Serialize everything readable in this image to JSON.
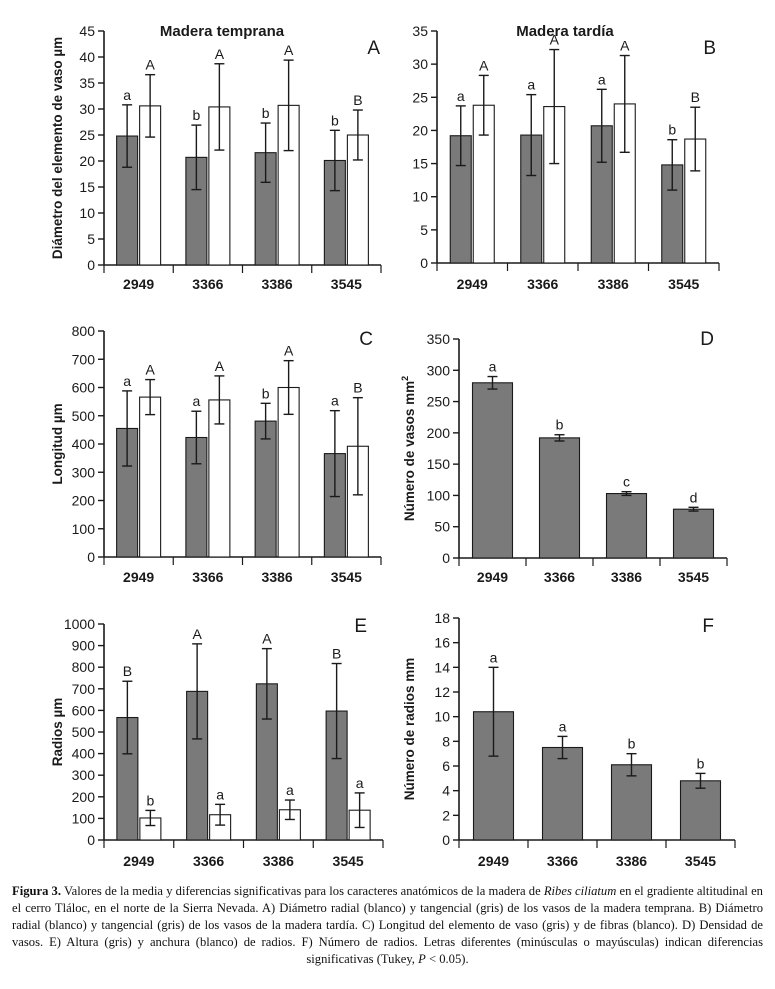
{
  "colors": {
    "gray": "#7a7a7a",
    "white": "#ffffff",
    "stroke": "#1a1a1a"
  },
  "chart_data": [
    {
      "panel": "A",
      "type": "bar",
      "title": "Madera temprana",
      "ylabel": "Diámetro del elemento de vaso µm",
      "ylim": [
        0,
        45
      ],
      "yticks": [
        "0",
        "5",
        "10",
        "15",
        "20",
        "25",
        "30",
        "35",
        "40",
        "45"
      ],
      "categories": [
        "2949",
        "3366",
        "3386",
        "3545"
      ],
      "series": [
        {
          "name": "tangencial",
          "color": "gray",
          "values": [
            24.8,
            20.7,
            21.6,
            20.1
          ],
          "err": [
            6,
            6.2,
            5.7,
            5.8
          ],
          "letters": [
            "a",
            "b",
            "b",
            "b"
          ]
        },
        {
          "name": "radial",
          "color": "white",
          "values": [
            30.6,
            30.4,
            30.7,
            25
          ],
          "err": [
            6,
            8.3,
            8.7,
            4.8
          ],
          "letters": [
            "A",
            "A",
            "A",
            "B"
          ]
        }
      ]
    },
    {
      "panel": "B",
      "type": "bar",
      "title": "Madera tardía",
      "ylabel": "",
      "ylim": [
        0,
        35
      ],
      "yticks": [
        "0",
        "5",
        "10",
        "15",
        "20",
        "25",
        "30",
        "35"
      ],
      "categories": [
        "2949",
        "3366",
        "3386",
        "3545"
      ],
      "series": [
        {
          "name": "tangencial",
          "color": "gray",
          "values": [
            19.2,
            19.3,
            20.7,
            14.8
          ],
          "err": [
            4.5,
            6.1,
            5.5,
            3.8
          ],
          "letters": [
            "a",
            "a",
            "a",
            "b"
          ]
        },
        {
          "name": "radial",
          "color": "white",
          "values": [
            23.8,
            23.6,
            24,
            18.7
          ],
          "err": [
            4.5,
            8.6,
            7.3,
            4.8
          ],
          "letters": [
            "A",
            "A",
            "A",
            "B"
          ]
        }
      ]
    },
    {
      "panel": "C",
      "type": "bar",
      "title": "",
      "ylabel": "Longitud µm",
      "ylim": [
        0,
        800
      ],
      "yticks": [
        "0",
        "100",
        "200",
        "300",
        "400",
        "500",
        "600",
        "700",
        "800"
      ],
      "categories": [
        "2949",
        "3366",
        "3386",
        "3545"
      ],
      "series": [
        {
          "name": "vaso",
          "color": "gray",
          "values": [
            455,
            423,
            481,
            366
          ],
          "err": [
            133,
            93,
            63,
            152
          ],
          "letters": [
            "a",
            "a",
            "b",
            "a"
          ]
        },
        {
          "name": "fibras",
          "color": "white",
          "values": [
            566,
            556,
            600,
            392
          ],
          "err": [
            62,
            85,
            95,
            172
          ],
          "letters": [
            "A",
            "A",
            "A",
            "B"
          ]
        }
      ]
    },
    {
      "panel": "D",
      "type": "bar",
      "title": "",
      "ylabel": "Número de vasos mm",
      "ylabel_sup": "2",
      "ylim": [
        0,
        350
      ],
      "yticks": [
        "0",
        "50",
        "100",
        "150",
        "200",
        "250",
        "300",
        "350"
      ],
      "categories": [
        "2949",
        "3366",
        "3386",
        "3545"
      ],
      "series": [
        {
          "name": "densidad",
          "color": "gray",
          "values": [
            280,
            192,
            103,
            78
          ],
          "err": [
            10,
            5,
            3,
            3
          ],
          "letters": [
            "a",
            "b",
            "c",
            "d"
          ]
        }
      ]
    },
    {
      "panel": "E",
      "type": "bar",
      "title": "",
      "ylabel": "Radios µm",
      "ylim": [
        0,
        1000
      ],
      "yticks": [
        "0",
        "100",
        "200",
        "300",
        "400",
        "500",
        "600",
        "700",
        "800",
        "900",
        "1000"
      ],
      "categories": [
        "2949",
        "3366",
        "3386",
        "3545"
      ],
      "series": [
        {
          "name": "altura",
          "color": "gray",
          "values": [
            567,
            688,
            723,
            597
          ],
          "err": [
            168,
            220,
            163,
            220
          ],
          "letters": [
            "B",
            "A",
            "A",
            "B"
          ]
        },
        {
          "name": "anchura",
          "color": "white",
          "values": [
            102,
            117,
            140,
            138
          ],
          "err": [
            35,
            48,
            45,
            80
          ],
          "letters": [
            "b",
            "a",
            "a",
            "a"
          ]
        }
      ]
    },
    {
      "panel": "F",
      "type": "bar",
      "title": "",
      "ylabel": "Número de radios mm",
      "ylim": [
        0,
        18
      ],
      "yticks": [
        "0",
        "2",
        "4",
        "6",
        "8",
        "10",
        "12",
        "14",
        "16",
        "18"
      ],
      "categories": [
        "2949",
        "3366",
        "3386",
        "3545"
      ],
      "series": [
        {
          "name": "radios",
          "color": "gray",
          "values": [
            10.4,
            7.5,
            6.1,
            4.8
          ],
          "err": [
            3.6,
            0.9,
            0.9,
            0.6
          ],
          "letters": [
            "a",
            "a",
            "b",
            "b"
          ]
        }
      ]
    }
  ],
  "caption": {
    "label": "Figura 3.",
    "text1": " Valores de la media y diferencias significativas para los caracteres anatómicos de la madera de ",
    "species": "Ribes ciliatum",
    "text2": " en el gradiente altitudinal en el cerro Tláloc, en el norte de la Sierra Nevada. A) Diámetro radial (blanco) y tangencial (gris) de los vasos de la madera temprana. B) Diámetro radial (blanco) y tangencial (gris) de los vasos de la madera tardía. C) Longitud del elemento de vaso (gris) y de fibras (blanco). D) Densidad de vasos. E) Altura (gris) y anchura (blanco) de radios. F) Número de radios. Letras diferentes (minúsculas o mayúsculas) indican diferencias significativas (Tukey, ",
    "p": "P",
    "text3": " < 0.05)."
  }
}
